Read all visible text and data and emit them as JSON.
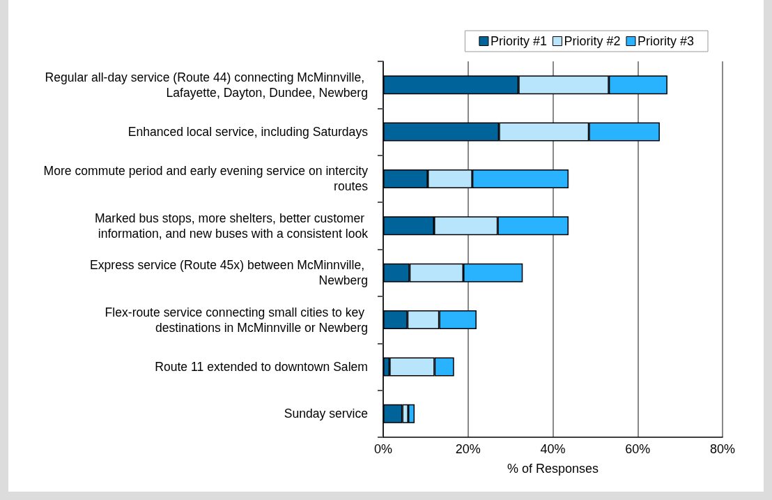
{
  "chart_data": {
    "type": "bar",
    "orientation": "horizontal",
    "stacked": true,
    "categories": [
      "Regular all-day service (Route 44) connecting McMinnville, Lafayette, Dayton, Dundee, Newberg",
      "Enhanced local service, including Saturdays",
      "More commute period and early evening service on intercity routes",
      "Marked bus stops, more shelters, better customer information, and new buses with a consistent look",
      "Express service (Route 45x) between McMinnville, Newberg",
      "Flex-route service connecting small cities to key destinations in McMinnville or Newberg",
      "Route 11 extended to downtown Salem",
      "Sunday service"
    ],
    "series": [
      {
        "name": "Priority #1",
        "color": "#00639a",
        "values": [
          31.9,
          27.3,
          10.5,
          12.0,
          6.2,
          5.7,
          1.5,
          4.5
        ]
      },
      {
        "name": "Priority #2",
        "color": "#b8e4fc",
        "values": [
          21.3,
          21.2,
          10.5,
          15.0,
          12.7,
          7.5,
          10.6,
          1.4
        ]
      },
      {
        "name": "Priority #3",
        "color": "#29b3ff",
        "values": [
          13.8,
          16.7,
          22.7,
          16.7,
          14.0,
          8.8,
          4.6,
          1.5
        ]
      }
    ],
    "xlabel": "% of Responses",
    "xlim": [
      0,
      80
    ],
    "xticks": [
      {
        "value": 0,
        "label": "0%"
      },
      {
        "value": 20,
        "label": "20%"
      },
      {
        "value": 40,
        "label": "40%"
      },
      {
        "value": 60,
        "label": "60%"
      },
      {
        "value": 80,
        "label": "80%"
      }
    ],
    "grid": "x",
    "legend": "top right"
  }
}
